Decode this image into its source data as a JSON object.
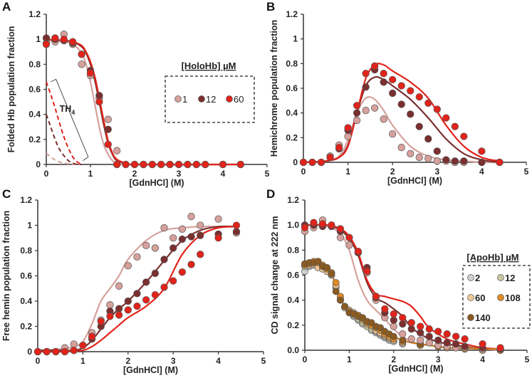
{
  "colors": {
    "c1": "#d6a19c",
    "c12": "#7b2f2f",
    "c60": "#e2231a",
    "a2": "#cfcfcf",
    "a12": "#c9c6a0",
    "a60": "#f2c994",
    "a108": "#e08a24",
    "a140": "#8b5a1f",
    "apofit": "#c8781c"
  },
  "chart_data": [
    {
      "panel": "A",
      "type": "scatter",
      "ylabel": "Folded Hb population fraction",
      "xlabel": "[GdnHCl] (M)",
      "xlim": [
        0,
        5
      ],
      "ylim": [
        0,
        1.2
      ],
      "xtick_labels": [
        "0",
        "1",
        "2",
        "3",
        "4",
        "5"
      ],
      "ytick_labels": [
        "0",
        "0.2",
        "0.4",
        "0.6",
        "0.8",
        "1",
        "1.2"
      ],
      "legend": {
        "title": "[HoloHb] µM",
        "position": "right",
        "entries": [
          "1",
          "12",
          "60"
        ]
      },
      "annotation": {
        "text": "TH",
        "subscript": "4"
      },
      "x": [
        0,
        0.2,
        0.4,
        0.6,
        0.8,
        1.0,
        1.2,
        1.4,
        1.6,
        1.8,
        2.0,
        2.2,
        2.4,
        2.6,
        2.8,
        3.0,
        3.2,
        3.4,
        3.6,
        4.0,
        4.4
      ],
      "series": [
        {
          "name": "1",
          "color": "c1",
          "values": [
            0.97,
            0.98,
            1.04,
            0.96,
            0.8,
            0.71,
            0.53,
            0.36,
            0.11,
            0,
            0,
            0,
            0,
            0,
            0,
            0,
            0,
            0,
            0,
            0,
            0
          ]
        },
        {
          "name": "12",
          "color": "c12",
          "values": [
            1.01,
            1.0,
            0.99,
            0.97,
            0.88,
            0.75,
            0.55,
            0.28,
            0,
            0,
            0,
            0,
            0,
            0,
            0,
            0,
            0,
            0,
            0,
            0,
            0
          ]
        },
        {
          "name": "60",
          "color": "c60",
          "values": [
            0.96,
            1.01,
            1.0,
            0.98,
            0.88,
            0.73,
            0.5,
            0.16,
            0,
            0,
            0,
            0,
            0,
            0,
            0,
            0,
            0,
            0,
            0,
            0,
            0
          ]
        }
      ],
      "fits_x": [
        0,
        0.4,
        0.6,
        0.8,
        0.9,
        1.0,
        1.1,
        1.2,
        1.3,
        1.4,
        1.5,
        1.6,
        1.8,
        2.0,
        4.4
      ],
      "fits": [
        {
          "name": "1",
          "color": "c1",
          "values": [
            0.99,
            0.98,
            0.96,
            0.89,
            0.8,
            0.66,
            0.48,
            0.3,
            0.16,
            0.08,
            0.03,
            0.01,
            0,
            0,
            0
          ]
        },
        {
          "name": "12",
          "color": "c12",
          "values": [
            1.0,
            0.99,
            0.98,
            0.94,
            0.89,
            0.8,
            0.67,
            0.5,
            0.32,
            0.17,
            0.08,
            0.03,
            0.01,
            0,
            0
          ]
        },
        {
          "name": "60",
          "color": "c60",
          "values": [
            1.0,
            0.99,
            0.98,
            0.95,
            0.9,
            0.82,
            0.7,
            0.53,
            0.35,
            0.19,
            0.09,
            0.04,
            0.01,
            0,
            0
          ]
        }
      ],
      "dashed_x": [
        0,
        0.1,
        0.2,
        0.3,
        0.4,
        0.5,
        0.6,
        0.7,
        0.8
      ],
      "dashed": [
        {
          "name": "1",
          "color": "c1",
          "values": [
            0.09,
            0.06,
            0.035,
            0.02,
            0.01,
            0.005,
            0,
            0,
            0
          ]
        },
        {
          "name": "12",
          "color": "c12",
          "values": [
            0.4,
            0.3,
            0.2,
            0.12,
            0.07,
            0.03,
            0.01,
            0,
            0
          ]
        },
        {
          "name": "60",
          "color": "c60",
          "values": [
            0.66,
            0.56,
            0.45,
            0.33,
            0.22,
            0.13,
            0.06,
            0.02,
            0
          ]
        }
      ]
    },
    {
      "panel": "B",
      "type": "scatter",
      "ylabel": "Hemichrome population fraction",
      "xlabel": "[GdnHCl] (M)",
      "xlim": [
        0,
        5
      ],
      "ylim": [
        0,
        1.2
      ],
      "xtick_labels": [
        "0",
        "1",
        "2",
        "3",
        "4",
        "5"
      ],
      "ytick_labels": [
        "0",
        "0.2",
        "0.4",
        "0.6",
        "0.8",
        "1",
        "1.2"
      ],
      "x": [
        0,
        0.2,
        0.4,
        0.6,
        0.8,
        1.0,
        1.2,
        1.4,
        1.6,
        1.8,
        2.0,
        2.2,
        2.4,
        2.6,
        2.8,
        3.0,
        3.2,
        3.4,
        3.6,
        4.0,
        4.4
      ],
      "series": [
        {
          "name": "1",
          "color": "c1",
          "values": [
            0,
            0,
            0,
            0.05,
            0.14,
            0.21,
            0.34,
            0.42,
            0.44,
            0.35,
            0.23,
            0.12,
            0.07,
            0.04,
            0.03,
            0.01,
            0.01,
            0,
            0,
            0,
            0
          ]
        },
        {
          "name": "12",
          "color": "c12",
          "values": [
            0,
            0,
            0,
            0.04,
            0.11,
            0.26,
            0.4,
            0.61,
            0.75,
            0.65,
            0.56,
            0.47,
            0.39,
            0.29,
            0.19,
            0.09,
            0.02,
            0.01,
            0.01,
            0,
            0
          ]
        },
        {
          "name": "60",
          "color": "c60",
          "values": [
            0,
            0,
            0,
            0.04,
            0.12,
            0.28,
            0.46,
            0.72,
            0.78,
            0.72,
            0.67,
            0.62,
            0.58,
            0.53,
            0.48,
            0.43,
            0.36,
            0.29,
            0.21,
            0.09,
            0
          ]
        }
      ],
      "fits_x": [
        0,
        0.5,
        0.8,
        1.0,
        1.2,
        1.4,
        1.6,
        1.8,
        2.0,
        2.4,
        2.8,
        3.2,
        3.6,
        4.0,
        4.4
      ],
      "fits": [
        {
          "name": "1",
          "color": "c1",
          "values": [
            0,
            0.01,
            0.05,
            0.18,
            0.4,
            0.52,
            0.51,
            0.42,
            0.3,
            0.13,
            0.05,
            0.02,
            0.01,
            0,
            0
          ]
        },
        {
          "name": "12",
          "color": "c12",
          "values": [
            0,
            0.01,
            0.04,
            0.14,
            0.4,
            0.62,
            0.69,
            0.67,
            0.62,
            0.51,
            0.36,
            0.19,
            0.07,
            0.02,
            0
          ]
        },
        {
          "name": "60",
          "color": "c60",
          "values": [
            0,
            0.01,
            0.04,
            0.13,
            0.4,
            0.68,
            0.79,
            0.79,
            0.74,
            0.65,
            0.52,
            0.3,
            0.13,
            0.04,
            0.01
          ]
        }
      ]
    },
    {
      "panel": "C",
      "type": "scatter",
      "ylabel": "Free hemin population fraction",
      "xlabel": "[GdnHCl] (M)",
      "xlim": [
        0,
        5
      ],
      "ylim": [
        0,
        1.2
      ],
      "xtick_labels": [
        "0",
        "1",
        "2",
        "3",
        "4",
        "5"
      ],
      "ytick_labels": [
        "0",
        "0.2",
        "0.4",
        "0.6",
        "0.8",
        "1",
        "1.2"
      ],
      "x": [
        0,
        0.2,
        0.4,
        0.6,
        0.8,
        1.0,
        1.2,
        1.4,
        1.6,
        1.8,
        2.0,
        2.2,
        2.4,
        2.6,
        2.8,
        3.0,
        3.2,
        3.4,
        3.6,
        4.0,
        4.4
      ],
      "series": [
        {
          "name": "1",
          "color": "c1",
          "values": [
            0,
            0,
            0,
            0.03,
            0.06,
            0.05,
            0.15,
            0.25,
            0.37,
            0.52,
            0.68,
            0.75,
            0.84,
            0.82,
            0.98,
            0.9,
            0.97,
            1.07,
            1.0,
            1.05,
            0.94
          ]
        },
        {
          "name": "12",
          "color": "c12",
          "values": [
            0,
            0,
            0,
            0,
            0.01,
            0.05,
            0.1,
            0.2,
            0.32,
            0.34,
            0.4,
            0.46,
            0.55,
            0.62,
            0.73,
            0.82,
            0.89,
            0.91,
            0.92,
            0.93,
            0.95
          ]
        },
        {
          "name": "60",
          "color": "c60",
          "values": [
            0,
            0,
            0,
            0,
            0.01,
            0.05,
            0.12,
            0.24,
            0.28,
            0.29,
            0.33,
            0.36,
            0.41,
            0.45,
            0.51,
            0.56,
            0.63,
            0.69,
            0.77,
            0.9,
            1.0
          ]
        }
      ],
      "fits_x": [
        0,
        0.5,
        0.8,
        1.0,
        1.2,
        1.4,
        1.6,
        1.8,
        2.0,
        2.4,
        2.8,
        3.2,
        3.6,
        4.0,
        4.4
      ],
      "fits": [
        {
          "name": "1",
          "color": "c1",
          "values": [
            0.01,
            0.02,
            0.04,
            0.08,
            0.22,
            0.4,
            0.5,
            0.6,
            0.73,
            0.88,
            0.96,
            0.98,
            0.99,
            0.99,
            0.99
          ]
        },
        {
          "name": "12",
          "color": "c12",
          "values": [
            0.01,
            0.01,
            0.01,
            0.03,
            0.09,
            0.18,
            0.27,
            0.34,
            0.4,
            0.55,
            0.72,
            0.88,
            0.96,
            0.99,
            0.99
          ]
        },
        {
          "name": "60",
          "color": "c60",
          "values": [
            0,
            0,
            0.01,
            0.01,
            0.04,
            0.09,
            0.15,
            0.21,
            0.27,
            0.36,
            0.5,
            0.77,
            0.92,
            0.98,
            0.99
          ]
        }
      ]
    },
    {
      "panel": "D",
      "type": "scatter",
      "ylabel": "CD signal change at 222 nm",
      "xlabel": "[GdnHCl] (M)",
      "xlim": [
        0,
        5
      ],
      "ylim": [
        0,
        1.2
      ],
      "xtick_labels": [
        "0",
        "1",
        "2",
        "3",
        "4",
        "5"
      ],
      "ytick_labels": [
        "0.0",
        "0.2",
        "0.4",
        "0.6",
        "0.8",
        "1.0",
        "1.2"
      ],
      "legend": {
        "title": "[ApoHb] µM",
        "position": "right",
        "entries": [
          "2",
          "12",
          "60",
          "108",
          "140"
        ]
      },
      "x": [
        0,
        0.2,
        0.4,
        0.6,
        0.8,
        1.0,
        1.2,
        1.4,
        1.6,
        1.8,
        2.0,
        2.2,
        2.4,
        2.6,
        2.8,
        3.0,
        3.2,
        3.4,
        3.6,
        4.0,
        4.4
      ],
      "series": [
        {
          "name": "HoloHb 1",
          "color": "c1",
          "values": [
            0.95,
            0.98,
            1.04,
            0.99,
            0.9,
            0.84,
            0.78,
            0.62,
            0.4,
            0.26,
            0.19,
            0.13,
            0.09,
            0.08,
            0.06,
            0.04,
            0.03,
            0.02,
            0.02,
            0.01,
            0.01
          ]
        },
        {
          "name": "HoloHb 12",
          "color": "c12",
          "values": [
            1.0,
            1.0,
            0.99,
            0.99,
            0.95,
            0.9,
            0.78,
            0.66,
            0.42,
            0.3,
            0.24,
            0.21,
            0.17,
            0.14,
            0.11,
            0.08,
            0.06,
            0.05,
            0.03,
            0.02,
            0.01
          ]
        },
        {
          "name": "HoloHb 60",
          "color": "c60",
          "values": [
            0.98,
            1.02,
            1.01,
            1.0,
            0.97,
            0.9,
            0.79,
            0.63,
            0.43,
            0.33,
            0.29,
            0.26,
            0.22,
            0.19,
            0.17,
            0.15,
            0.13,
            0.11,
            0.09,
            0.05,
            0.02
          ]
        }
      ],
      "apo_x": [
        0,
        0.1,
        0.2,
        0.3,
        0.4,
        0.5,
        0.6,
        0.7,
        0.8,
        0.9,
        1.0,
        1.1,
        1.2,
        1.3,
        1.4,
        1.5,
        1.6,
        1.7,
        1.8,
        1.9,
        2.0,
        2.2,
        2.6,
        3.0,
        3.2,
        3.6,
        4.0,
        4.4
      ],
      "apo_series": [
        {
          "name": "2",
          "color": "a2",
          "values": [
            0.63,
            0.67,
            0.68,
            0.66,
            0.65,
            0.63,
            0.6,
            0.5,
            0.4,
            0.34,
            0.3,
            0.27,
            0.24,
            0.21,
            0.19,
            0.16,
            0.14,
            0.12,
            0.1,
            0.08,
            0.07,
            0.05,
            0.04,
            0.03,
            0.02,
            0.01,
            0,
            0
          ]
        },
        {
          "name": "12",
          "color": "a12",
          "values": [
            0.67,
            0.68,
            0.68,
            0.67,
            0.66,
            0.64,
            0.6,
            0.51,
            0.4,
            0.34,
            0.31,
            0.28,
            0.25,
            0.22,
            0.19,
            0.17,
            0.15,
            0.13,
            0.11,
            0.09,
            0.08,
            0.06,
            0.04,
            0.03,
            0.02,
            0.01,
            0,
            0
          ]
        },
        {
          "name": "60",
          "color": "a60",
          "values": [
            0.69,
            0.68,
            0.69,
            0.66,
            0.65,
            0.63,
            0.61,
            0.52,
            0.41,
            0.34,
            0.32,
            0.3,
            0.27,
            0.24,
            0.21,
            0.19,
            0.16,
            0.14,
            0.12,
            0.1,
            0.08,
            0.06,
            0.04,
            0.03,
            0.02,
            0.01,
            0,
            0
          ]
        },
        {
          "name": "108",
          "color": "a108",
          "values": [
            0.68,
            0.69,
            0.71,
            0.7,
            0.68,
            0.65,
            0.62,
            0.54,
            0.43,
            0.35,
            0.31,
            0.29,
            0.28,
            0.25,
            0.22,
            0.2,
            0.18,
            0.16,
            0.13,
            0.11,
            0.09,
            0.07,
            0.04,
            0.03,
            0.02,
            0.01,
            0.01,
            0
          ]
        },
        {
          "name": "140",
          "color": "a140",
          "values": [
            0.69,
            0.7,
            0.7,
            0.71,
            0.67,
            0.66,
            0.61,
            0.47,
            0.4,
            0.35,
            0.3,
            0.29,
            0.27,
            0.26,
            0.23,
            0.22,
            0.19,
            0.18,
            0.15,
            0.13,
            0.11,
            0.08,
            0.05,
            0.04,
            0.03,
            0.02,
            0.01,
            0.01
          ]
        }
      ],
      "fits_x": [
        0,
        0.5,
        0.8,
        1.0,
        1.2,
        1.4,
        1.6,
        1.8,
        2.0,
        2.2,
        2.4,
        2.6,
        2.8,
        3.2,
        3.6,
        4.0,
        4.4
      ],
      "fits": [
        {
          "name": "HoloHb 1",
          "color": "c1",
          "values": [
            1,
            0.99,
            0.93,
            0.8,
            0.56,
            0.4,
            0.32,
            0.25,
            0.17,
            0.11,
            0.07,
            0.05,
            0.04,
            0.02,
            0.01,
            0.01,
            0
          ]
        },
        {
          "name": "HoloHb 12",
          "color": "c12",
          "values": [
            1,
            1,
            0.96,
            0.89,
            0.76,
            0.54,
            0.42,
            0.38,
            0.33,
            0.27,
            0.18,
            0.13,
            0.09,
            0.05,
            0.03,
            0.01,
            0.01
          ]
        },
        {
          "name": "HoloHb 60",
          "color": "c60",
          "values": [
            1,
            1,
            0.97,
            0.91,
            0.78,
            0.56,
            0.45,
            0.43,
            0.41,
            0.39,
            0.35,
            0.27,
            0.18,
            0.09,
            0.05,
            0.02,
            0.01
          ]
        },
        {
          "name": "ApoHb",
          "color": "apofit",
          "values": [
            0.69,
            0.67,
            0.42,
            0.3,
            0.27,
            0.23,
            0.19,
            0.15,
            0.11,
            0.08,
            0.06,
            0.05,
            0.04,
            0.02,
            0.02,
            0.01,
            0.01
          ]
        }
      ]
    }
  ]
}
